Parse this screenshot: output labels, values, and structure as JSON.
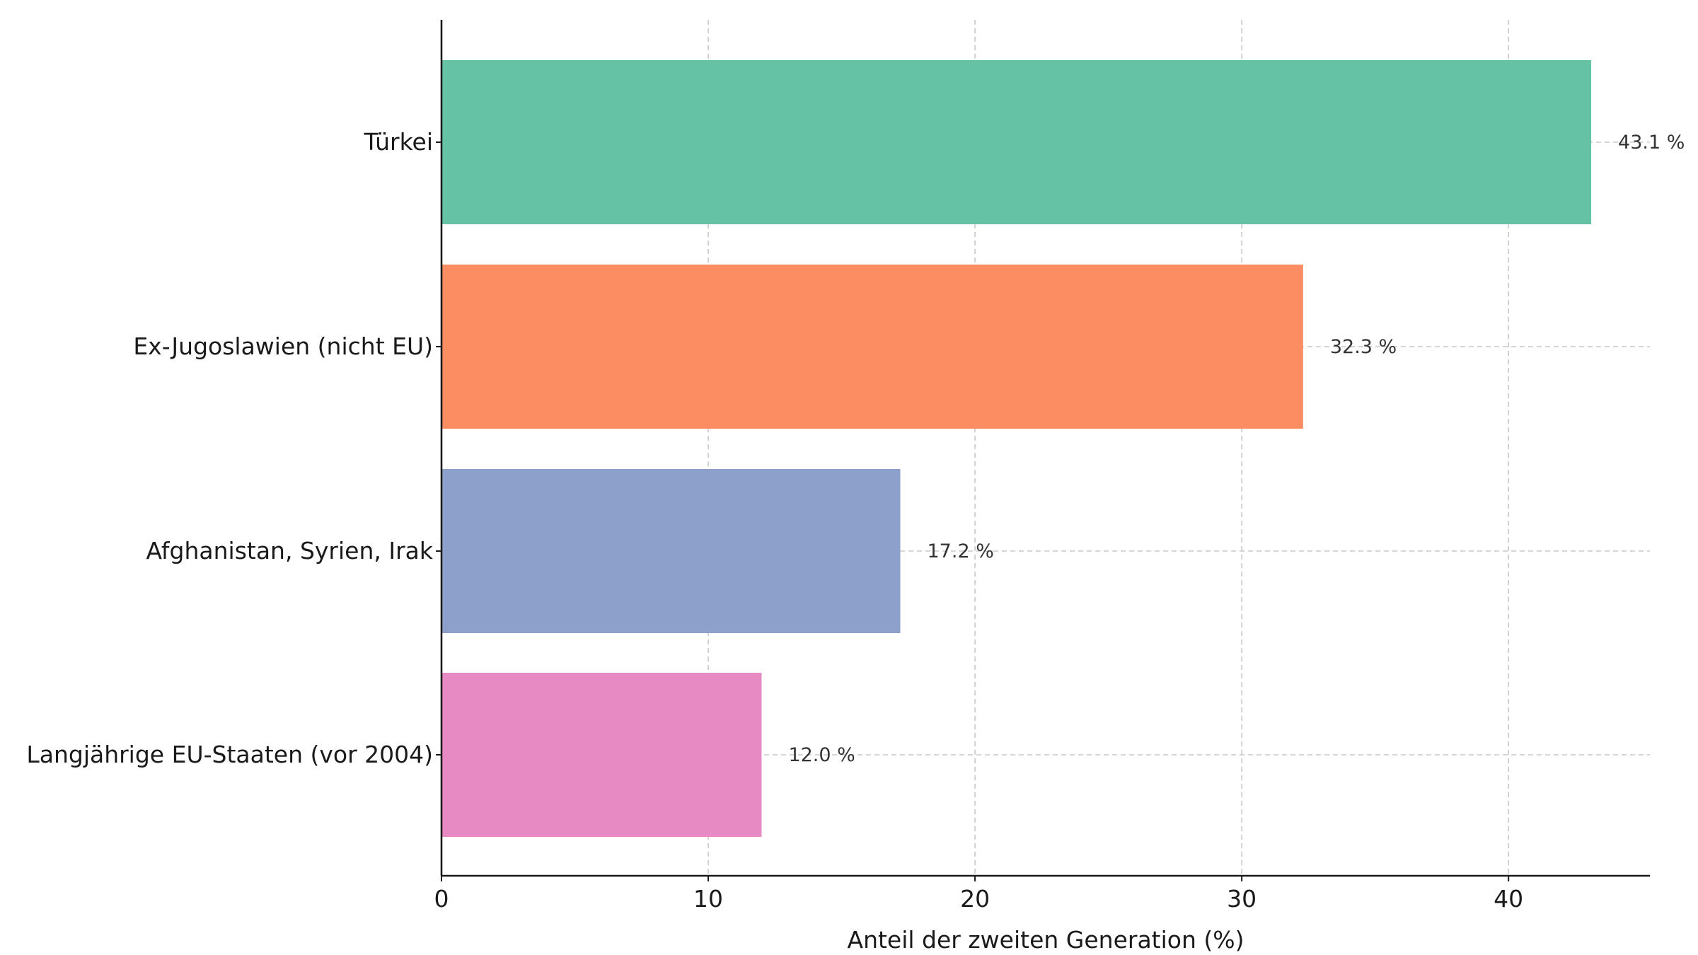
{
  "chart_data": {
    "type": "bar",
    "orientation": "horizontal",
    "categories": [
      "Türkei",
      "Ex-Jugoslawien (nicht EU)",
      "Afghanistan, Syrien, Irak",
      "Langjährige EU-Staaten (vor 2004)"
    ],
    "values": [
      43.1,
      32.3,
      17.2,
      12.0
    ],
    "value_labels": [
      "43.1 %",
      "32.3 %",
      "17.2 %",
      "12.0 %"
    ],
    "colors": [
      "#66c2a5",
      "#fc8d62",
      "#8da0cb",
      "#e78ac3"
    ],
    "xlabel": "Anteil der zweiten Generation (%)",
    "ylabel": "",
    "title": "",
    "xlim": [
      0,
      45.3
    ],
    "xticks": [
      0,
      10,
      20,
      30,
      40
    ],
    "xtick_labels": [
      "0",
      "10",
      "20",
      "30",
      "40"
    ],
    "grid": true,
    "legend": false
  }
}
